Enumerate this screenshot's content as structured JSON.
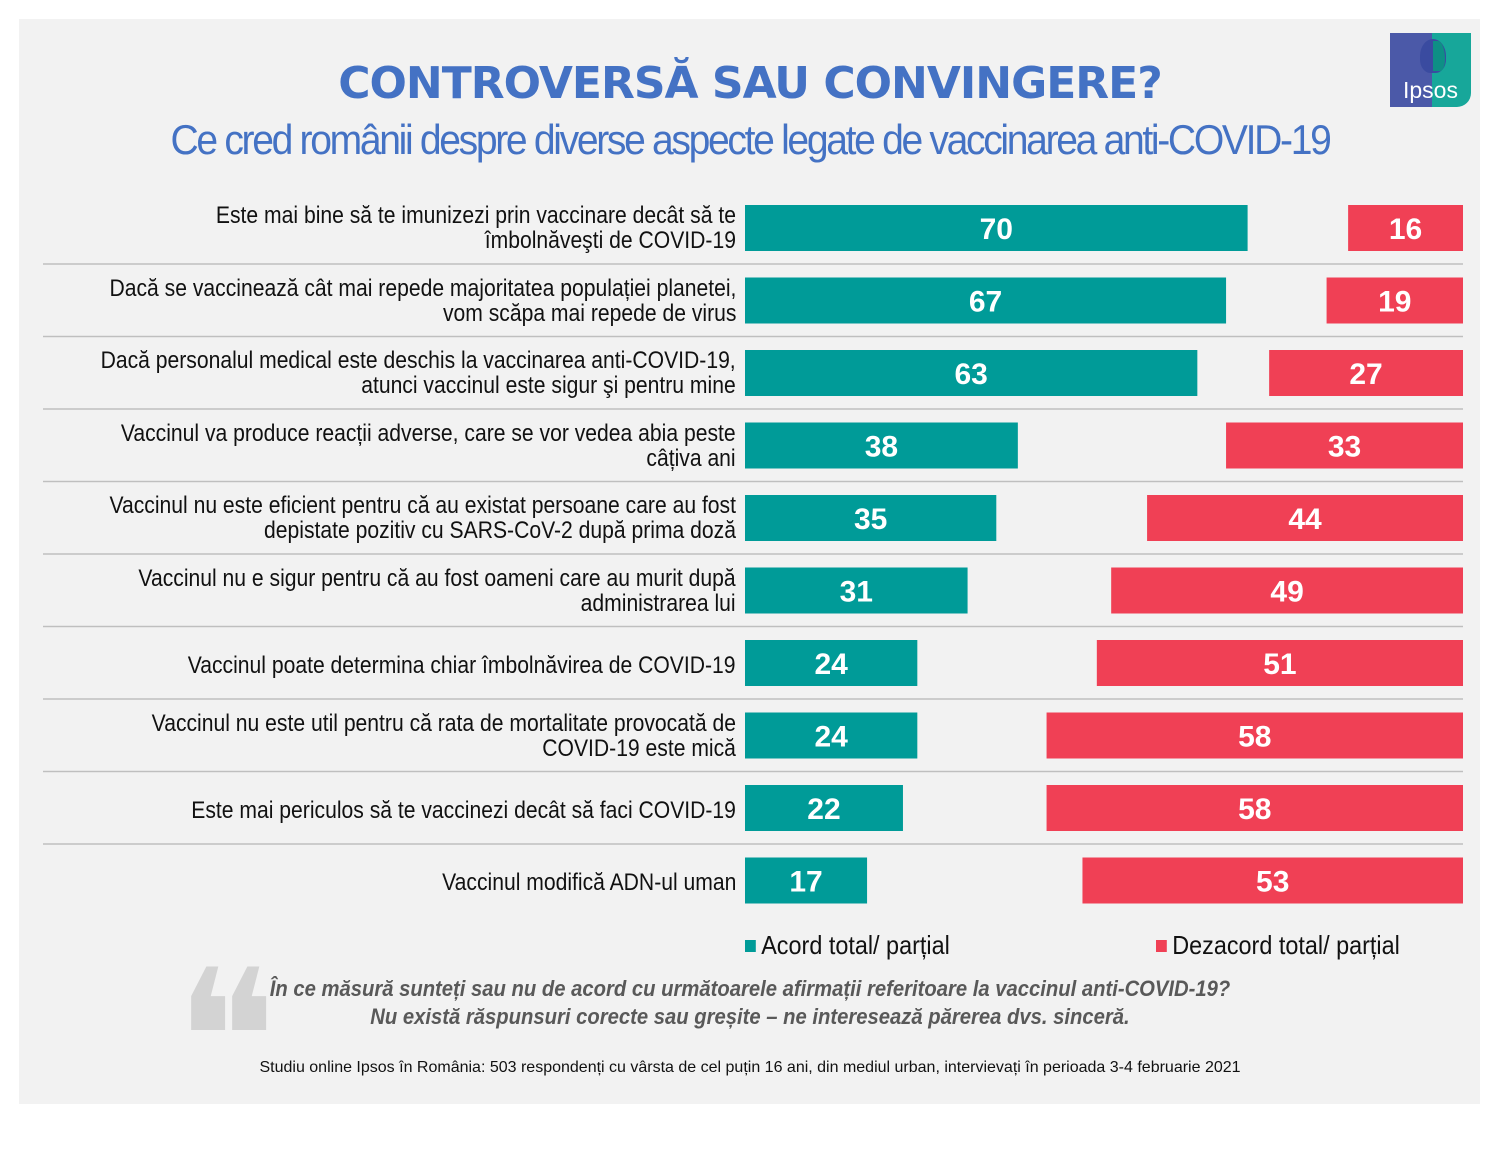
{
  "header": {
    "title": "CONTROVERSĂ SAU CONVINGERE?",
    "subtitle": "Ce cred românii despre diverse aspecte legate de vaccinarea anti-COVID-19",
    "logo_text": "Ipsos"
  },
  "chart_data": {
    "type": "bar",
    "orientation": "horizontal",
    "title": "CONTROVERSĂ SAU CONVINGERE?",
    "subtitle": "Ce cred românii despre diverse aspecte legate de vaccinarea anti-COVID-19",
    "categories": [
      [
        "Este mai bine să te imunizezi prin vaccinare decât să te",
        "îmbolnăveşti de COVID-19"
      ],
      [
        "Dacă se vaccinează cât mai repede majoritatea populației planetei,",
        "vom scăpa mai repede de virus"
      ],
      [
        "Dacă personalul medical este deschis la vaccinarea anti-COVID-19,",
        "atunci vaccinul este sigur şi pentru mine"
      ],
      [
        "Vaccinul va produce reacții adverse, care se vor vedea abia peste",
        "câțiva ani"
      ],
      [
        "Vaccinul nu este eficient pentru că au existat persoane care au fost",
        "depistate pozitiv cu SARS-CoV-2 după prima doză"
      ],
      [
        "Vaccinul nu e sigur pentru că au fost oameni care au murit după",
        "administrarea lui"
      ],
      [
        "Vaccinul poate determina chiar îmbolnăvirea de COVID-19"
      ],
      [
        "Vaccinul nu este util pentru că rata de mortalitate provocată de",
        "COVID-19 este mică"
      ],
      [
        "Este mai periculos să te vaccinezi decât să faci COVID-19"
      ],
      [
        "Vaccinul modifică ADN-ul uman"
      ]
    ],
    "series": [
      {
        "name": "Acord total/ parțial",
        "color": "#009b98",
        "values": [
          70,
          67,
          63,
          38,
          35,
          31,
          24,
          24,
          22,
          17
        ]
      },
      {
        "name": "Dezacord total/ parțial",
        "color": "#f04055",
        "values": [
          16,
          19,
          27,
          33,
          44,
          49,
          51,
          58,
          58,
          53
        ]
      }
    ],
    "xlabel": "",
    "ylabel": "",
    "xlim": [
      0,
      100
    ],
    "grid": false,
    "legend_position": "bottom-right"
  },
  "legend": {
    "agree_label": "Acord total/ parțial",
    "disagree_label": "Dezacord total/ parțial"
  },
  "question": {
    "line1": "În ce măsură sunteți sau nu de acord cu următoarele afirmații referitoare la vaccinul anti-COVID-19?",
    "line2": "Nu există răspunsuri corecte sau greșite – ne interesează părerea dvs. sinceră."
  },
  "footnote": "Studiu online Ipsos în România: 503 respondenți cu vârsta de cel puțin 16 ani, din mediul urban, intervievați în perioada 3-4 februarie 2021"
}
